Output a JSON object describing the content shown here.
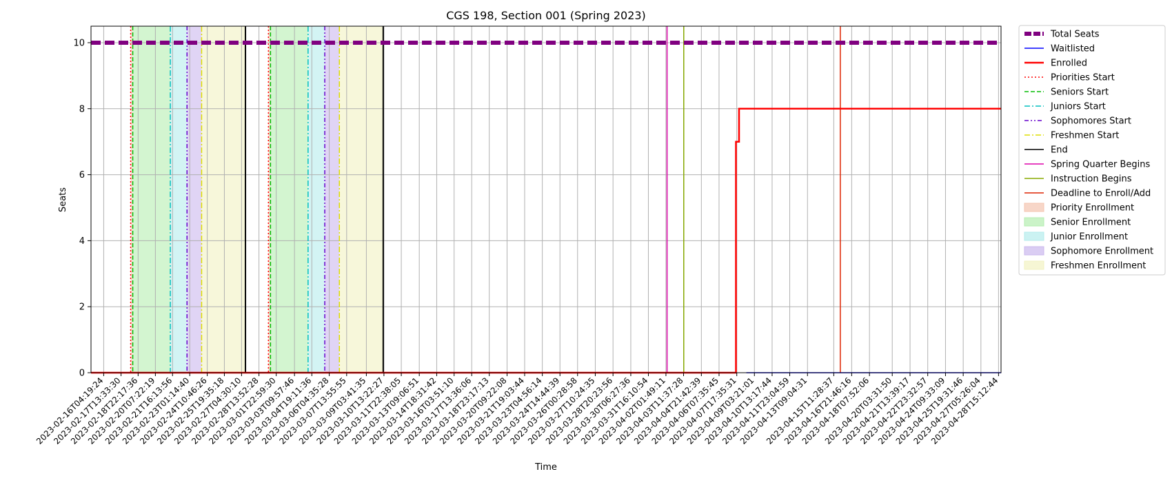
{
  "chart_data": {
    "type": "line",
    "title": "CGS 198, Section 001 (Spring 2023)",
    "xlabel": "Time",
    "ylabel": "Seats",
    "x_range": [
      "2023-02-15T04:00:00",
      "2023-04-28T20:00:00"
    ],
    "ylim": [
      0,
      10.5
    ],
    "yticks": [
      0,
      2,
      4,
      6,
      8,
      10
    ],
    "grid": true,
    "legend_position": "outside right, top",
    "xticks": [
      "2023-02-16T04:19:24",
      "2023-02-17T13:33:30",
      "2023-02-18T22:17:36",
      "2023-02-20T07:22:19",
      "2023-02-21T16:13:56",
      "2023-02-23T01:14:40",
      "2023-02-24T10:46:26",
      "2023-02-25T19:35:18",
      "2023-02-27T04:30:10",
      "2023-02-28T13:52:28",
      "2023-03-01T22:59:30",
      "2023-03-03T09:57:46",
      "2023-03-04T19:11:36",
      "2023-03-06T04:35:28",
      "2023-03-07T13:55:55",
      "2023-03-09T03:41:35",
      "2023-03-10T13:22:27",
      "2023-03-11T22:38:05",
      "2023-03-13T09:06:51",
      "2023-03-14T18:31:42",
      "2023-03-16T03:51:10",
      "2023-03-17T13:36:06",
      "2023-03-18T23:17:13",
      "2023-03-20T09:22:08",
      "2023-03-21T19:03:44",
      "2023-03-23T04:56:14",
      "2023-03-24T14:44:39",
      "2023-03-26T00:28:58",
      "2023-03-27T10:24:35",
      "2023-03-28T20:23:56",
      "2023-03-30T06:27:36",
      "2023-03-31T16:10:54",
      "2023-04-02T01:49:11",
      "2023-04-03T11:37:28",
      "2023-04-04T21:42:39",
      "2023-04-06T07:35:45",
      "2023-04-07T17:35:31",
      "2023-04-09T03:21:01",
      "2023-04-10T13:17:44",
      "2023-04-11T23:04:59",
      "2023-04-13T09:04:31",
      "2023-04-15T11:28:37",
      "2023-04-16T21:46:16",
      "2023-04-18T07:52:06",
      "2023-04-20T03:31:50",
      "2023-04-21T13:39:17",
      "2023-04-22T23:32:57",
      "2023-04-24T09:33:09",
      "2023-04-25T19:31:46",
      "2023-04-27T05:26:04",
      "2023-04-28T15:12:44"
    ],
    "series": [
      {
        "name": "Total Seats",
        "color": "#800080",
        "style": "dashed-thick",
        "points": [
          [
            "2023-02-15T04:00:00",
            10
          ],
          [
            "2023-04-28T20:00:00",
            10
          ]
        ]
      },
      {
        "name": "Waitlisted",
        "color": "#0000ff",
        "style": "solid",
        "points": [
          [
            "2023-04-08T12:00:00",
            0
          ],
          [
            "2023-04-28T20:00:00",
            0
          ]
        ]
      },
      {
        "name": "Enrolled",
        "color": "#ff0000",
        "style": "solid-thick",
        "points": [
          [
            "2023-02-15T04:00:00",
            0
          ],
          [
            "2023-04-07T16:00:00",
            0
          ],
          [
            "2023-04-07T16:00:00",
            7
          ],
          [
            "2023-04-07T22:00:00",
            7
          ],
          [
            "2023-04-07T22:00:00",
            8
          ],
          [
            "2023-04-28T20:00:00",
            8
          ]
        ]
      }
    ],
    "events": [
      {
        "name": "Priorities Start",
        "color": "#ff0000",
        "style": "dotted",
        "times": [
          "2023-02-18T08:00:00",
          "2023-03-01T08:00:00"
        ]
      },
      {
        "name": "Seniors Start",
        "color": "#00bb00",
        "style": "dashed",
        "times": [
          "2023-02-18T12:00:00",
          "2023-03-01T12:00:00"
        ]
      },
      {
        "name": "Juniors Start",
        "color": "#00bfbf",
        "style": "dashdot",
        "times": [
          "2023-02-21T12:00:00",
          "2023-03-04T12:00:00"
        ]
      },
      {
        "name": "Sophomores Start",
        "color": "#6600cc",
        "style": "dashdotdot",
        "times": [
          "2023-02-22T20:00:00",
          "2023-03-05T20:00:00"
        ]
      },
      {
        "name": "Freshmen Start",
        "color": "#dddd00",
        "style": "dashdot",
        "times": [
          "2023-02-24T00:00:00",
          "2023-03-07T00:00:00"
        ]
      },
      {
        "name": "End",
        "color": "#000000",
        "style": "solid",
        "times": [
          "2023-02-27T12:00:00",
          "2023-03-10T12:00:00"
        ]
      },
      {
        "name": "Spring Quarter Begins",
        "color": "#dd00aa",
        "style": "solid",
        "times": [
          "2023-04-02T04:00:00"
        ]
      },
      {
        "name": "Instruction Begins",
        "color": "#88aa00",
        "style": "solid",
        "times": [
          "2023-04-03T12:00:00"
        ]
      },
      {
        "name": "Deadline to Enroll/Add",
        "color": "#dd2200",
        "style": "solid",
        "times": [
          "2023-04-16T00:00:00"
        ]
      }
    ],
    "spans": [
      {
        "name": "Priority Enrollment",
        "color": "#f4c4b0",
        "ranges": [
          [
            "2023-02-18T08:00:00",
            "2023-02-18T12:00:00"
          ],
          [
            "2023-03-01T08:00:00",
            "2023-03-01T12:00:00"
          ]
        ]
      },
      {
        "name": "Senior Enrollment",
        "color": "#b5eeb0",
        "ranges": [
          [
            "2023-02-18T12:00:00",
            "2023-02-21T12:00:00"
          ],
          [
            "2023-03-01T12:00:00",
            "2023-03-04T12:00:00"
          ]
        ]
      },
      {
        "name": "Junior Enrollment",
        "color": "#b5ecec",
        "ranges": [
          [
            "2023-02-21T12:00:00",
            "2023-02-22T20:00:00"
          ],
          [
            "2023-03-04T12:00:00",
            "2023-03-05T20:00:00"
          ]
        ]
      },
      {
        "name": "Sophomore Enrollment",
        "color": "#cbb8ee",
        "ranges": [
          [
            "2023-02-22T20:00:00",
            "2023-02-24T00:00:00"
          ],
          [
            "2023-03-05T20:00:00",
            "2023-03-07T00:00:00"
          ]
        ]
      },
      {
        "name": "Freshmen Enrollment",
        "color": "#f2f2c2",
        "ranges": [
          [
            "2023-02-24T00:00:00",
            "2023-02-27T12:00:00"
          ],
          [
            "2023-03-07T00:00:00",
            "2023-03-10T12:00:00"
          ]
        ]
      }
    ],
    "legend_order": [
      "Total Seats",
      "Waitlisted",
      "Enrolled",
      "Priorities Start",
      "Seniors Start",
      "Juniors Start",
      "Sophomores Start",
      "Freshmen Start",
      "End",
      "Spring Quarter Begins",
      "Instruction Begins",
      "Deadline to Enroll/Add",
      "Priority Enrollment",
      "Senior Enrollment",
      "Junior Enrollment",
      "Sophomore Enrollment",
      "Freshmen Enrollment"
    ]
  }
}
